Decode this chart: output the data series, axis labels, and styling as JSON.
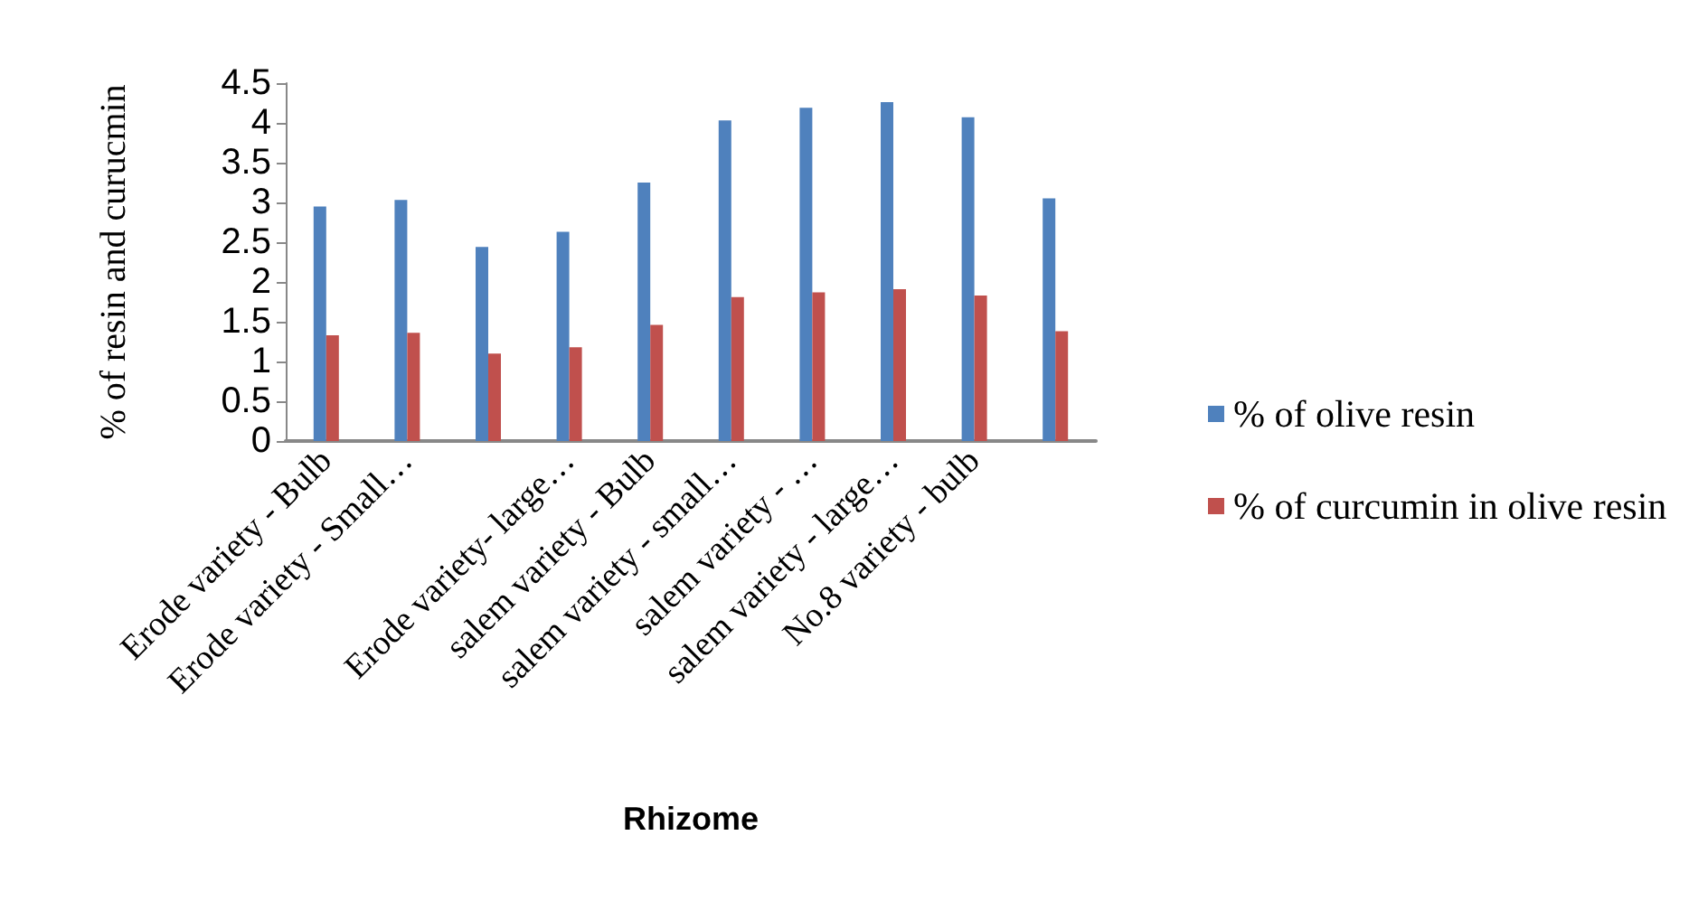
{
  "chart_data": {
    "type": "bar",
    "xlabel": "Rhizome",
    "ylabel": "% of resin and curucmin",
    "categories": [
      "Erode variety - Bulb",
      "Erode variety - Small…",
      null,
      "Erode variety- large…",
      "salem variety - Bulb",
      "salem variety - small…",
      "salem variety - …",
      "salem variety - large…",
      "No.8 variety - bulb",
      null
    ],
    "series": [
      {
        "name": "% of olive resin",
        "color": "#4f81bd",
        "values": [
          2.95,
          3.03,
          2.44,
          2.63,
          3.25,
          4.03,
          4.19,
          4.26,
          4.07,
          3.05
        ]
      },
      {
        "name": "% of curcumin in olive resin",
        "color": "#c0504d",
        "values": [
          1.33,
          1.36,
          1.1,
          1.18,
          1.46,
          1.81,
          1.87,
          1.91,
          1.83,
          1.38
        ]
      }
    ],
    "ylim": [
      0,
      4.5
    ],
    "yticks": [
      0,
      0.5,
      1,
      1.5,
      2,
      2.5,
      3,
      3.5,
      4,
      4.5
    ],
    "grid": false,
    "legend": "right"
  }
}
